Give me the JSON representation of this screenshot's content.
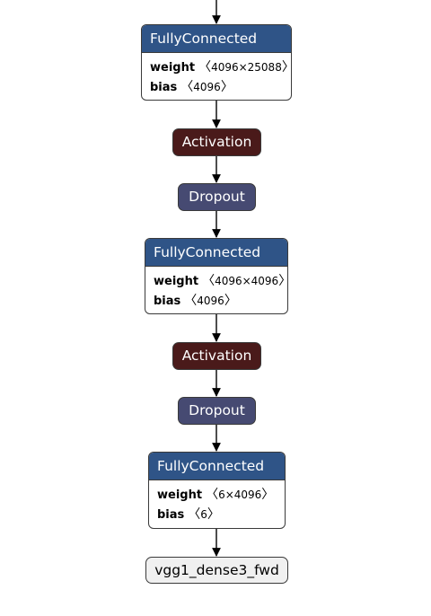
{
  "colors": {
    "layer_header": "#2f5487",
    "activation": "#4a1a1a",
    "dropout": "#464a72",
    "output_bg": "#f0f0f0",
    "edge": "#000000",
    "border": "#3a3a3a"
  },
  "nodes": {
    "fc1": {
      "title": "FullyConnected",
      "weight_name": "weight",
      "weight_dims": "4096×25088",
      "bias_name": "bias",
      "bias_dims": "4096"
    },
    "act1": {
      "label": "Activation"
    },
    "drop1": {
      "label": "Dropout"
    },
    "fc2": {
      "title": "FullyConnected",
      "weight_name": "weight",
      "weight_dims": "4096×4096",
      "bias_name": "bias",
      "bias_dims": "4096"
    },
    "act2": {
      "label": "Activation"
    },
    "drop2": {
      "label": "Dropout"
    },
    "fc3": {
      "title": "FullyConnected",
      "weight_name": "weight",
      "weight_dims": "6×4096",
      "bias_name": "bias",
      "bias_dims": "6"
    },
    "output": {
      "label": "vgg1_dense3_fwd"
    }
  },
  "glyphs": {
    "open_angle": "〈",
    "close_angle": "〉"
  }
}
